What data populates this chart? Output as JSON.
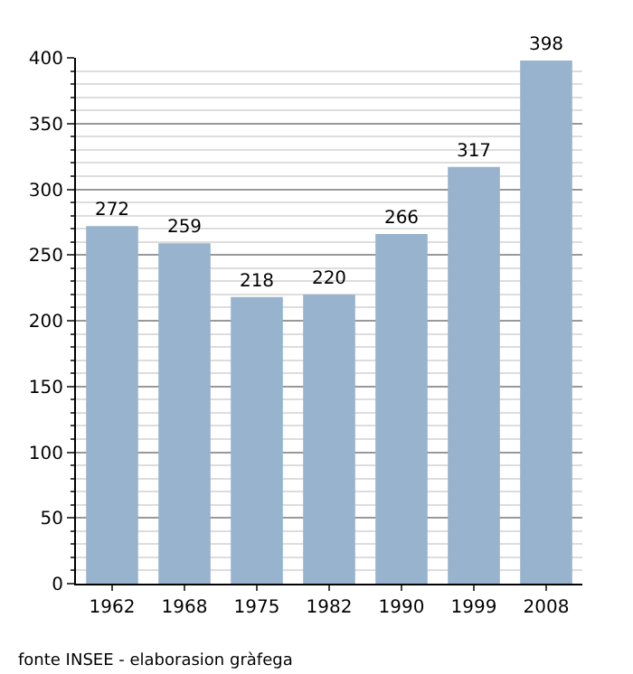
{
  "chart_data": {
    "type": "bar",
    "categories": [
      "1962",
      "1968",
      "1975",
      "1982",
      "1990",
      "1999",
      "2008"
    ],
    "values": [
      272,
      259,
      218,
      220,
      266,
      317,
      398
    ],
    "color": "#98b3cd",
    "ylim": [
      0,
      400
    ],
    "yticks": [
      0,
      50,
      100,
      150,
      200,
      250,
      300,
      350,
      400
    ],
    "grid": "y",
    "data_labels": true,
    "annotations": [
      "fonte INSEE - elaborasion gràfega"
    ]
  }
}
